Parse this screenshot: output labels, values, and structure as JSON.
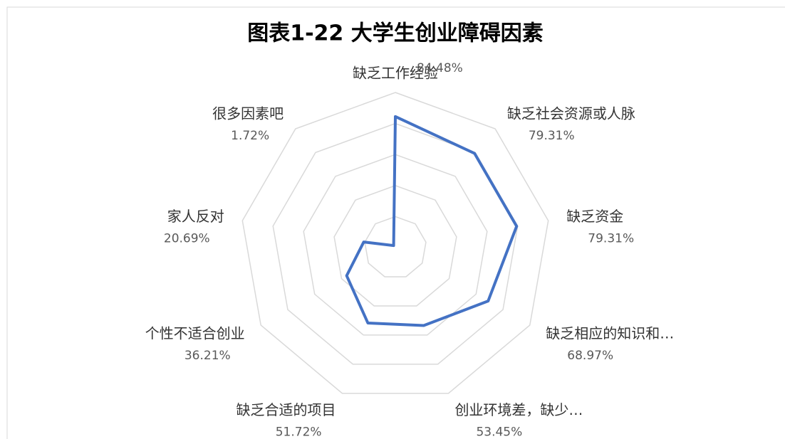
{
  "chart_data": {
    "type": "radar",
    "title": "图表1-22 大学生创业障碍因素",
    "categories": [
      "缺乏工作经验",
      "缺乏社会资源或人脉",
      "缺乏资金",
      "缺乏相应的知识和…",
      "创业环境差，缺少…",
      "缺乏合适的项目",
      "个性不适合创业",
      "家人反对",
      "很多因素吧"
    ],
    "values": [
      84.48,
      79.31,
      79.31,
      68.97,
      53.45,
      51.72,
      36.21,
      20.69,
      1.72
    ],
    "value_labels": [
      "84.48%",
      "79.31%",
      "79.31%",
      "68.97%",
      "53.45%",
      "51.72%",
      "36.21%",
      "20.69%",
      "1.72%"
    ],
    "color": "#4472c4",
    "ylim": [
      0,
      100
    ],
    "yticks": [
      0,
      20,
      40,
      60,
      80,
      100
    ],
    "grid": true
  }
}
